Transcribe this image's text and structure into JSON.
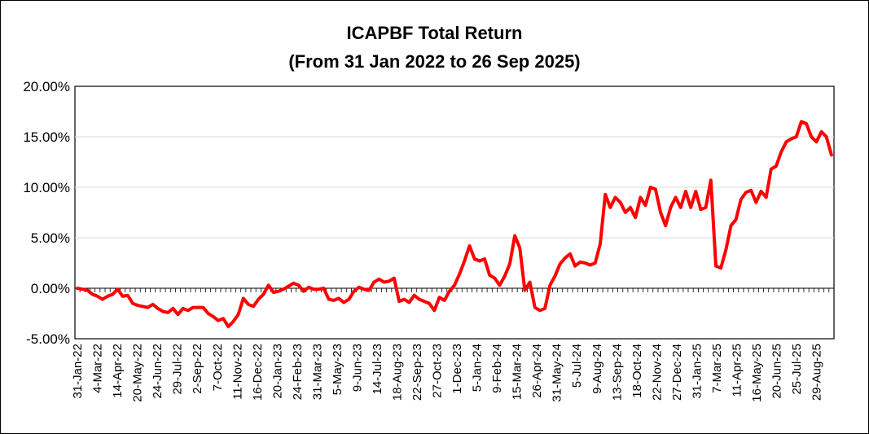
{
  "chart_data": {
    "type": "line",
    "title": "ICAPBF Total Return",
    "subtitle": "(From 31 Jan 2022 to 26 Sep 2025)",
    "xlabel": "",
    "ylabel": "",
    "ylim": [
      -0.05,
      0.2
    ],
    "yticks": [
      "20.00%",
      "15.00%",
      "10.00%",
      "5.00%",
      "0.00%",
      "-5.00%"
    ],
    "ytick_values": [
      0.2,
      0.15,
      0.1,
      0.05,
      0.0,
      -0.05
    ],
    "xtick_labels": [
      "31-Jan-22",
      "4-Mar-22",
      "14-Apr-22",
      "20-May-22",
      "24-Jun-22",
      "29-Jul-22",
      "2-Sep-22",
      "7-Oct-22",
      "11-Nov-22",
      "16-Dec-22",
      "20-Jan-23",
      "24-Feb-23",
      "31-Mar-23",
      "5-May-23",
      "9-Jun-23",
      "14-Jul-23",
      "18-Aug-23",
      "22-Sep-23",
      "27-Oct-23",
      "1-Dec-23",
      "5-Jan-24",
      "9-Feb-24",
      "15-Mar-24",
      "26-Apr-24",
      "31-May-24",
      "5-Jul-24",
      "9-Aug-24",
      "13-Sep-24",
      "18-Oct-24",
      "22-Nov-24",
      "27-Dec-24",
      "31-Jan-25",
      "7-Mar-25",
      "11-Apr-25",
      "16-May-25",
      "20-Jun-25",
      "25-Jul-25",
      "29-Aug-25"
    ],
    "grid": true,
    "line_color": "#ff0000",
    "series": [
      {
        "values": [
          0.0,
          -0.001,
          -0.002,
          -0.006,
          -0.008,
          -0.011,
          -0.008,
          -0.006,
          -0.001,
          -0.008,
          -0.007,
          -0.015,
          -0.017,
          -0.018,
          -0.019,
          -0.016,
          -0.02,
          -0.023,
          -0.024,
          -0.02,
          -0.026,
          -0.02,
          -0.022,
          -0.019,
          -0.019,
          -0.019,
          -0.025,
          -0.028,
          -0.032,
          -0.03,
          -0.038,
          -0.033,
          -0.026,
          -0.01,
          -0.016,
          -0.018,
          -0.011,
          -0.006,
          0.003,
          -0.004,
          -0.003,
          -0.001,
          0.002,
          0.005,
          0.003,
          -0.003,
          0.001,
          -0.001,
          -0.001,
          0.0,
          -0.011,
          -0.012,
          -0.01,
          -0.014,
          -0.011,
          -0.003,
          0.001,
          -0.001,
          -0.002,
          0.006,
          0.009,
          0.006,
          0.007,
          0.01,
          -0.013,
          -0.011,
          -0.014,
          -0.007,
          -0.011,
          -0.013,
          -0.015,
          -0.022,
          -0.009,
          -0.012,
          -0.003,
          0.003,
          0.014,
          0.027,
          0.042,
          0.029,
          0.027,
          0.029,
          0.013,
          0.01,
          0.003,
          0.012,
          0.024,
          0.052,
          0.04,
          -0.002,
          0.006,
          -0.019,
          -0.022,
          -0.02,
          0.003,
          0.012,
          0.024,
          0.03,
          0.034,
          0.022,
          0.026,
          0.025,
          0.023,
          0.025,
          0.044,
          0.093,
          0.08,
          0.09,
          0.085,
          0.075,
          0.08,
          0.07,
          0.09,
          0.082,
          0.1,
          0.098,
          0.075,
          0.062,
          0.08,
          0.09,
          0.08,
          0.096,
          0.08,
          0.096,
          0.078,
          0.08,
          0.107,
          0.022,
          0.02,
          0.038,
          0.062,
          0.068,
          0.088,
          0.095,
          0.097,
          0.085,
          0.096,
          0.09,
          0.118,
          0.121,
          0.135,
          0.145,
          0.148,
          0.15,
          0.165,
          0.163,
          0.15,
          0.145,
          0.155,
          0.15,
          0.132
        ]
      }
    ]
  }
}
